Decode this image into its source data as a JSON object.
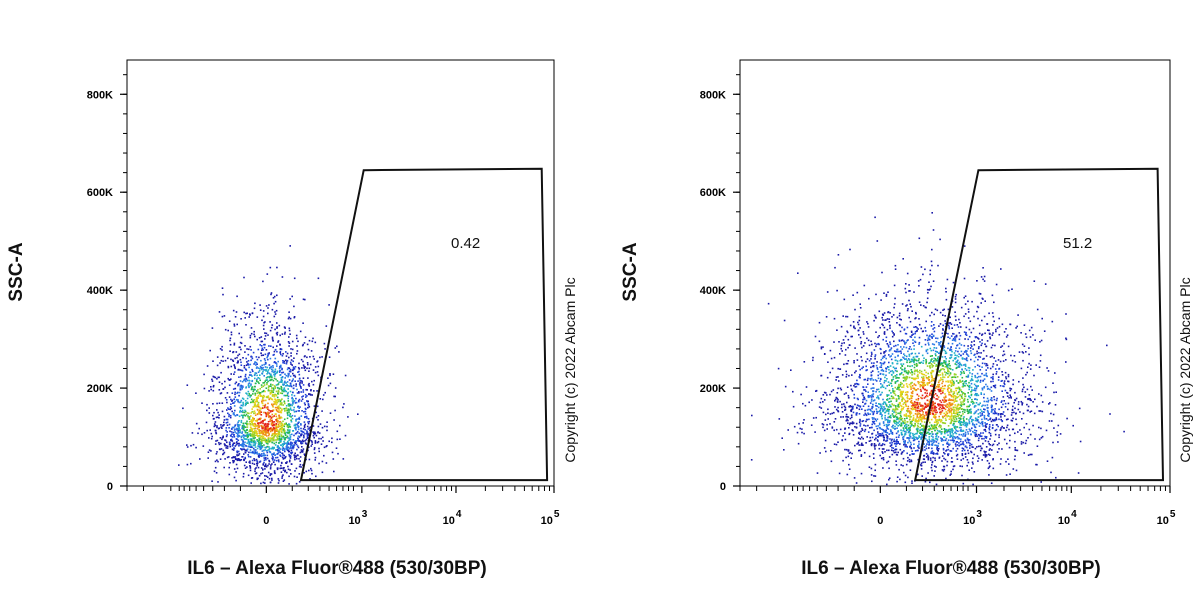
{
  "chart_data": [
    {
      "type": "scatter",
      "panel": "left",
      "xlabel": "IL6 – Alexa Fluor®488 (530/30BP)",
      "ylabel": "SSC-A",
      "x_scale": "biexponential",
      "xticks": [
        {
          "base": "0",
          "exp": ""
        },
        {
          "base": "10",
          "exp": "3"
        },
        {
          "base": "10",
          "exp": "4"
        },
        {
          "base": "10",
          "exp": "5"
        }
      ],
      "yticks": [
        "0",
        "200K",
        "400K",
        "600K",
        "800K"
      ],
      "ylim": [
        0,
        870000
      ],
      "gate": {
        "label": "0.42",
        "vertices_data": [
          [
            150,
            12000
          ],
          [
            1050,
            645000
          ],
          [
            75000,
            648000
          ],
          [
            85000,
            12000
          ]
        ]
      },
      "population": {
        "center_x": 0,
        "center_y": 130000,
        "spread_x_decades": 0.5,
        "spread_y": 70000,
        "points": 2600,
        "seed": 11
      },
      "copyright": "Copyright (c) 2022 Abcam Plc"
    },
    {
      "type": "scatter",
      "panel": "right",
      "xlabel": "IL6 – Alexa Fluor®488 (530/30BP)",
      "ylabel": "SSC-A",
      "x_scale": "biexponential",
      "xticks": [
        {
          "base": "0",
          "exp": ""
        },
        {
          "base": "10",
          "exp": "3"
        },
        {
          "base": "10",
          "exp": "4"
        },
        {
          "base": "10",
          "exp": "5"
        }
      ],
      "yticks": [
        "0",
        "200K",
        "400K",
        "600K",
        "800K"
      ],
      "ylim": [
        0,
        870000
      ],
      "gate": {
        "label": "51.2",
        "vertices_data": [
          [
            150,
            12000
          ],
          [
            1050,
            645000
          ],
          [
            75000,
            648000
          ],
          [
            85000,
            12000
          ]
        ]
      },
      "population": {
        "center_x": 250,
        "center_y": 170000,
        "spread_x_decades": 0.9,
        "spread_y": 80000,
        "points": 3800,
        "seed": 29
      },
      "copyright": "Copyright (c) 2022 Abcam Plc"
    }
  ]
}
